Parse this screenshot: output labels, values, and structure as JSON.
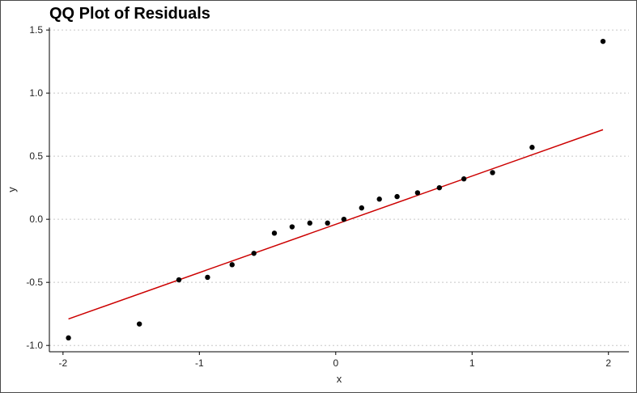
{
  "chart_data": {
    "type": "scatter",
    "title": "QQ Plot of Residuals",
    "xlabel": "x",
    "ylabel": "y",
    "xlim": [
      -2.1,
      2.15
    ],
    "ylim": [
      -1.05,
      1.52
    ],
    "x_ticks": [
      -2,
      -1,
      0,
      1,
      2
    ],
    "x_tick_labels": [
      "-2",
      "-1",
      "0",
      "1",
      "2"
    ],
    "y_ticks": [
      -1.0,
      -0.5,
      0.0,
      0.5,
      1.0,
      1.5
    ],
    "y_tick_labels": [
      "-1.0",
      "-0.5",
      "0.0",
      "0.5",
      "1.0",
      "1.5"
    ],
    "grid": "horizontal dotted",
    "points": {
      "x": [
        -1.96,
        -1.44,
        -1.15,
        -0.94,
        -0.76,
        -0.6,
        -0.45,
        -0.32,
        -0.19,
        -0.06,
        0.06,
        0.19,
        0.32,
        0.45,
        0.6,
        0.76,
        0.94,
        1.15,
        1.44,
        1.96
      ],
      "y": [
        -0.94,
        -0.83,
        -0.48,
        -0.46,
        -0.36,
        -0.27,
        -0.11,
        -0.06,
        -0.03,
        -0.03,
        0.0,
        0.09,
        0.16,
        0.18,
        0.21,
        0.25,
        0.32,
        0.37,
        0.57,
        1.41
      ]
    },
    "reference_line": {
      "x": [
        -1.96,
        1.96
      ],
      "y": [
        -0.79,
        0.71
      ]
    },
    "colors": {
      "points": "#000000",
      "line": "#cc0000",
      "grid": "#c8c8c8",
      "axis": "#000000"
    }
  }
}
